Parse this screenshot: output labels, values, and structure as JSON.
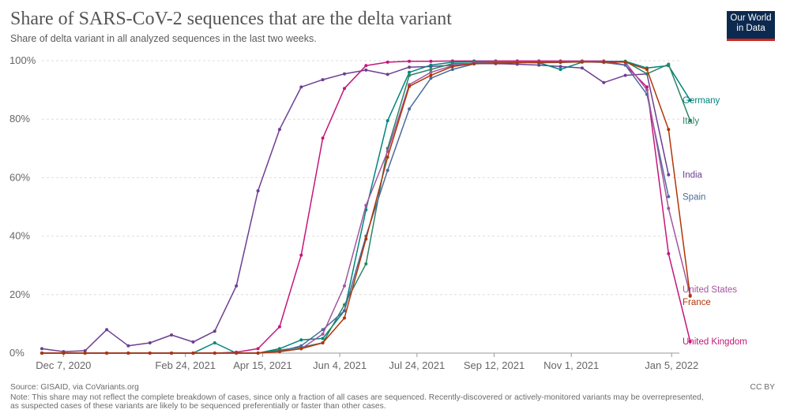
{
  "header": {
    "title": "Share of SARS-CoV-2 sequences that are the delta variant",
    "subtitle": "Share of delta variant in all analyzed sequences in the last two weeks."
  },
  "logo": {
    "line1": "Our World",
    "line2": "in Data",
    "bg_color": "#0c2a4f",
    "accent_color": "#ce261e"
  },
  "footer": {
    "source": "Source: GISAID, via CoVariants.org",
    "note_line1": "Note: This share may not reflect the complete breakdown of cases, since only a fraction of all cases are sequenced. Recently-discovered or actively-monitored variants may be overrepresented,",
    "note_line2": "as suspected cases of these variants are likely to be sequenced preferentially or faster than other cases.",
    "license": "CC BY"
  },
  "chart_data": {
    "type": "line",
    "title": "Share of SARS-CoV-2 sequences that are the delta variant",
    "subtitle": "Share of delta variant in all analyzed sequences in the last two weeks.",
    "x_start": "2020-11-23",
    "x_step_days": 14,
    "xlim": [
      "2020-11-23",
      "2022-01-10"
    ],
    "ylim": [
      0,
      100
    ],
    "y_ticks": [
      0,
      20,
      40,
      60,
      80,
      100
    ],
    "y_tick_labels": [
      "0%",
      "20%",
      "40%",
      "60%",
      "80%",
      "100%"
    ],
    "x_ticks": [
      "2020-12-07",
      "2021-02-24",
      "2021-04-15",
      "2021-06-04",
      "2021-07-24",
      "2021-09-12",
      "2021-11-01",
      "2022-01-05"
    ],
    "x_tick_labels": [
      "Dec 7, 2020",
      "Feb 24, 2021",
      "Apr 15, 2021",
      "Jun 4, 2021",
      "Jul 24, 2021",
      "Sep 12, 2021",
      "Nov 1, 2021",
      "Jan 5, 2022"
    ],
    "grid": "horizontal dashed",
    "legend": "inline labels at right end of lines",
    "series": [
      {
        "name": "India",
        "color": "#6d3e91",
        "values": [
          1.5,
          0.5,
          0.8,
          8,
          2.5,
          3.5,
          6.2,
          3.8,
          7.5,
          23,
          55.5,
          76.5,
          91,
          93.5,
          95.5,
          96.8,
          95.3,
          97.8,
          98,
          98.5,
          99,
          99,
          98.8,
          98.5,
          98,
          97.5,
          92.5,
          95,
          95.5,
          61
        ]
      },
      {
        "name": "United Kingdom",
        "color": "#c4167a",
        "values": [
          0,
          0,
          0,
          0,
          0,
          0,
          0,
          0,
          0,
          0.3,
          1.5,
          9,
          33.5,
          73.5,
          90.5,
          98.3,
          99.5,
          99.8,
          99.8,
          99.9,
          99.9,
          99.9,
          99.9,
          99.9,
          99.9,
          99.9,
          99.9,
          98.5,
          91,
          34,
          4
        ]
      },
      {
        "name": "Germany",
        "color": "#00847e",
        "values": [
          0,
          0,
          0,
          0,
          0,
          0,
          0,
          0,
          3.5,
          0,
          0,
          1.5,
          4.5,
          5,
          14.5,
          49,
          79.5,
          96,
          98.5,
          99.5,
          99.7,
          99.6,
          99.5,
          99.3,
          97,
          99.5,
          99.8,
          99.8,
          97.5,
          98.3,
          86.5
        ]
      },
      {
        "name": "Italy",
        "color": "#2c8465",
        "values": [
          0,
          0,
          0,
          0,
          0,
          0,
          0,
          0,
          0,
          0,
          0,
          1,
          2,
          3.5,
          16.5,
          30.5,
          70,
          95,
          97,
          99,
          99.2,
          99.2,
          99.3,
          99.5,
          99.6,
          99.7,
          99.8,
          99.8,
          95.5,
          98.8,
          79.5
        ]
      },
      {
        "name": "Spain",
        "color": "#4c6a9c",
        "values": [
          0,
          0,
          0,
          0,
          0,
          0,
          0,
          0,
          0,
          0,
          0,
          0.5,
          2.5,
          8,
          14.5,
          40,
          62.5,
          83.5,
          94,
          97,
          98.9,
          99.3,
          99.5,
          99.3,
          99.4,
          99.6,
          99.4,
          98.5,
          88.5,
          53.5
        ]
      },
      {
        "name": "United States",
        "color": "#a2559c",
        "values": [
          0,
          0,
          0,
          0,
          0,
          0,
          0,
          0,
          0,
          0,
          0,
          0.5,
          1.5,
          6.5,
          23,
          50.5,
          69,
          91.8,
          96,
          98.3,
          99.3,
          99.5,
          99.5,
          99.6,
          99.7,
          99.8,
          99.8,
          99.5,
          90,
          49.5,
          19.8
        ]
      },
      {
        "name": "France",
        "color": "#b13507",
        "values": [
          0,
          0,
          0,
          0,
          0,
          0,
          0,
          0,
          0,
          0,
          0,
          0.5,
          1.5,
          3.5,
          12,
          39,
          67,
          91.2,
          95,
          98,
          99,
          99.2,
          99.3,
          99.4,
          99.5,
          99.6,
          99.6,
          99.5,
          97,
          76.5,
          19.5
        ]
      }
    ],
    "end_labels": [
      {
        "series": "Germany",
        "label": "Germany",
        "y": 86.5
      },
      {
        "series": "Italy",
        "label": "Italy",
        "y": 79.5
      },
      {
        "series": "India",
        "label": "India",
        "y": 61
      },
      {
        "series": "Spain",
        "label": "Spain",
        "y": 53.5
      },
      {
        "series": "United States",
        "label": "United States",
        "y": 21.8
      },
      {
        "series": "France",
        "label": "France",
        "y": 17.5
      },
      {
        "series": "United Kingdom",
        "label": "United Kingdom",
        "y": 4
      }
    ]
  }
}
